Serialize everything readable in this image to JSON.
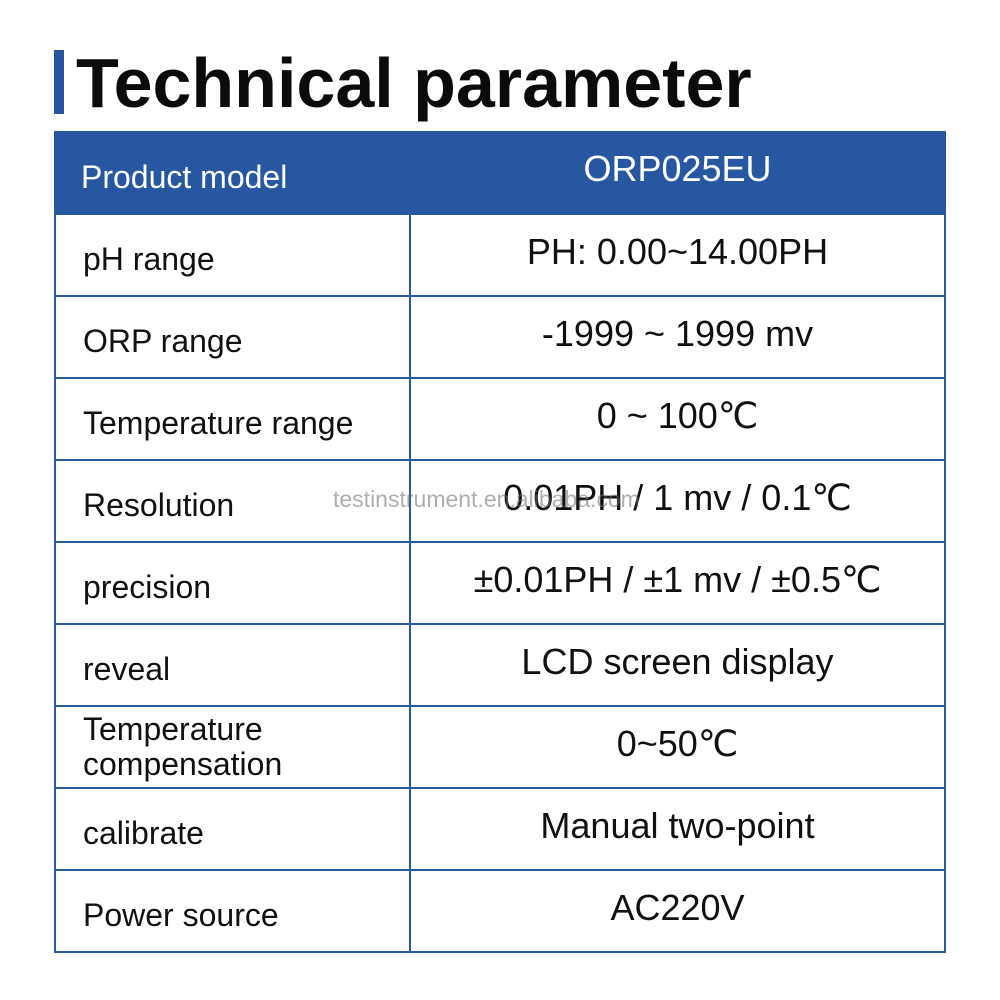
{
  "title": "Technical parameter",
  "accent_color": "#2757a0",
  "table": {
    "header": {
      "label": "Product model",
      "value": "ORP025EU"
    },
    "rows": [
      {
        "label": "pH range",
        "value": "PH: 0.00~14.00PH"
      },
      {
        "label": "ORP range",
        "value": "-1999 ~ 1999 mv"
      },
      {
        "label": "Temperature range",
        "value": "0 ~ 100℃"
      },
      {
        "label": "Resolution",
        "value": "0.01PH / 1 mv / 0.1℃"
      },
      {
        "label": "precision",
        "value": "±0.01PH / ±1 mv / ±0.5℃"
      },
      {
        "label": "reveal",
        "value": "LCD screen display"
      },
      {
        "label": "Temperature compensation",
        "label_line1": "Temperature",
        "label_line2": "compensation",
        "value": "0~50℃"
      },
      {
        "label": "calibrate",
        "value": "Manual two-point"
      },
      {
        "label": "Power source",
        "value": "AC220V"
      }
    ]
  },
  "watermark": "testinstrument.en.alibaba.com"
}
